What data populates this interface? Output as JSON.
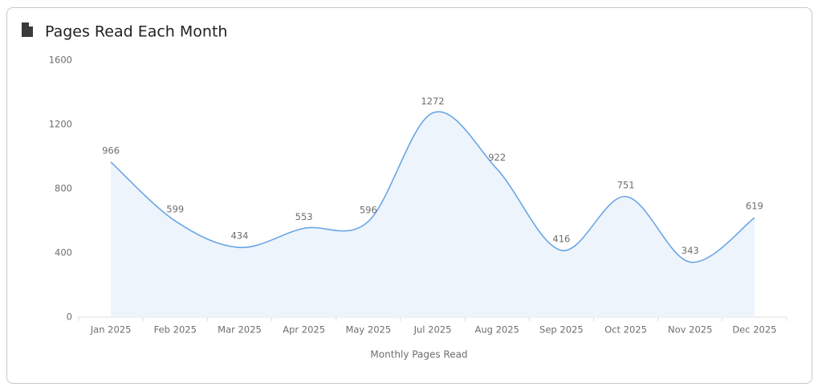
{
  "chart_data": {
    "type": "area",
    "title": "Pages Read Each Month",
    "x_label": "Monthly Pages Read",
    "categories": [
      "Jan 2025",
      "Feb 2025",
      "Mar 2025",
      "Apr 2025",
      "May 2025",
      "Jul 2025",
      "Aug 2025",
      "Sep 2025",
      "Oct 2025",
      "Nov 2025",
      "Dec 2025"
    ],
    "values": [
      966,
      599,
      434,
      553,
      596,
      1272,
      922,
      416,
      751,
      343,
      619
    ],
    "color": "#6aa6e3",
    "fill": "#edf4fc",
    "ylim": [
      0,
      1600
    ],
    "yticks": [
      0,
      400,
      800,
      1200,
      1600
    ],
    "grid": false,
    "smooth": true
  }
}
